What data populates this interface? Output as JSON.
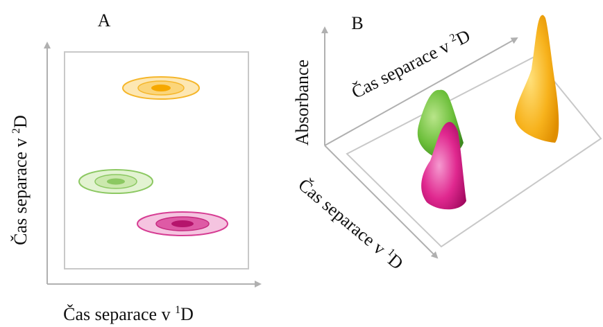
{
  "panel_a": {
    "label": "A",
    "y_axis": {
      "text": "Čas separace v ",
      "sup": "2",
      "end": "D"
    },
    "x_axis": {
      "text": "Čas separace v ",
      "sup": "1",
      "end": "D"
    }
  },
  "panel_b": {
    "label": "B",
    "z_axis": "Absorbance",
    "depth_axis": {
      "text": "Čas separace v ",
      "sup": "2",
      "end": "D"
    },
    "x_axis": {
      "text": "Čas separace v ",
      "sup": "1",
      "end": "D"
    }
  }
}
